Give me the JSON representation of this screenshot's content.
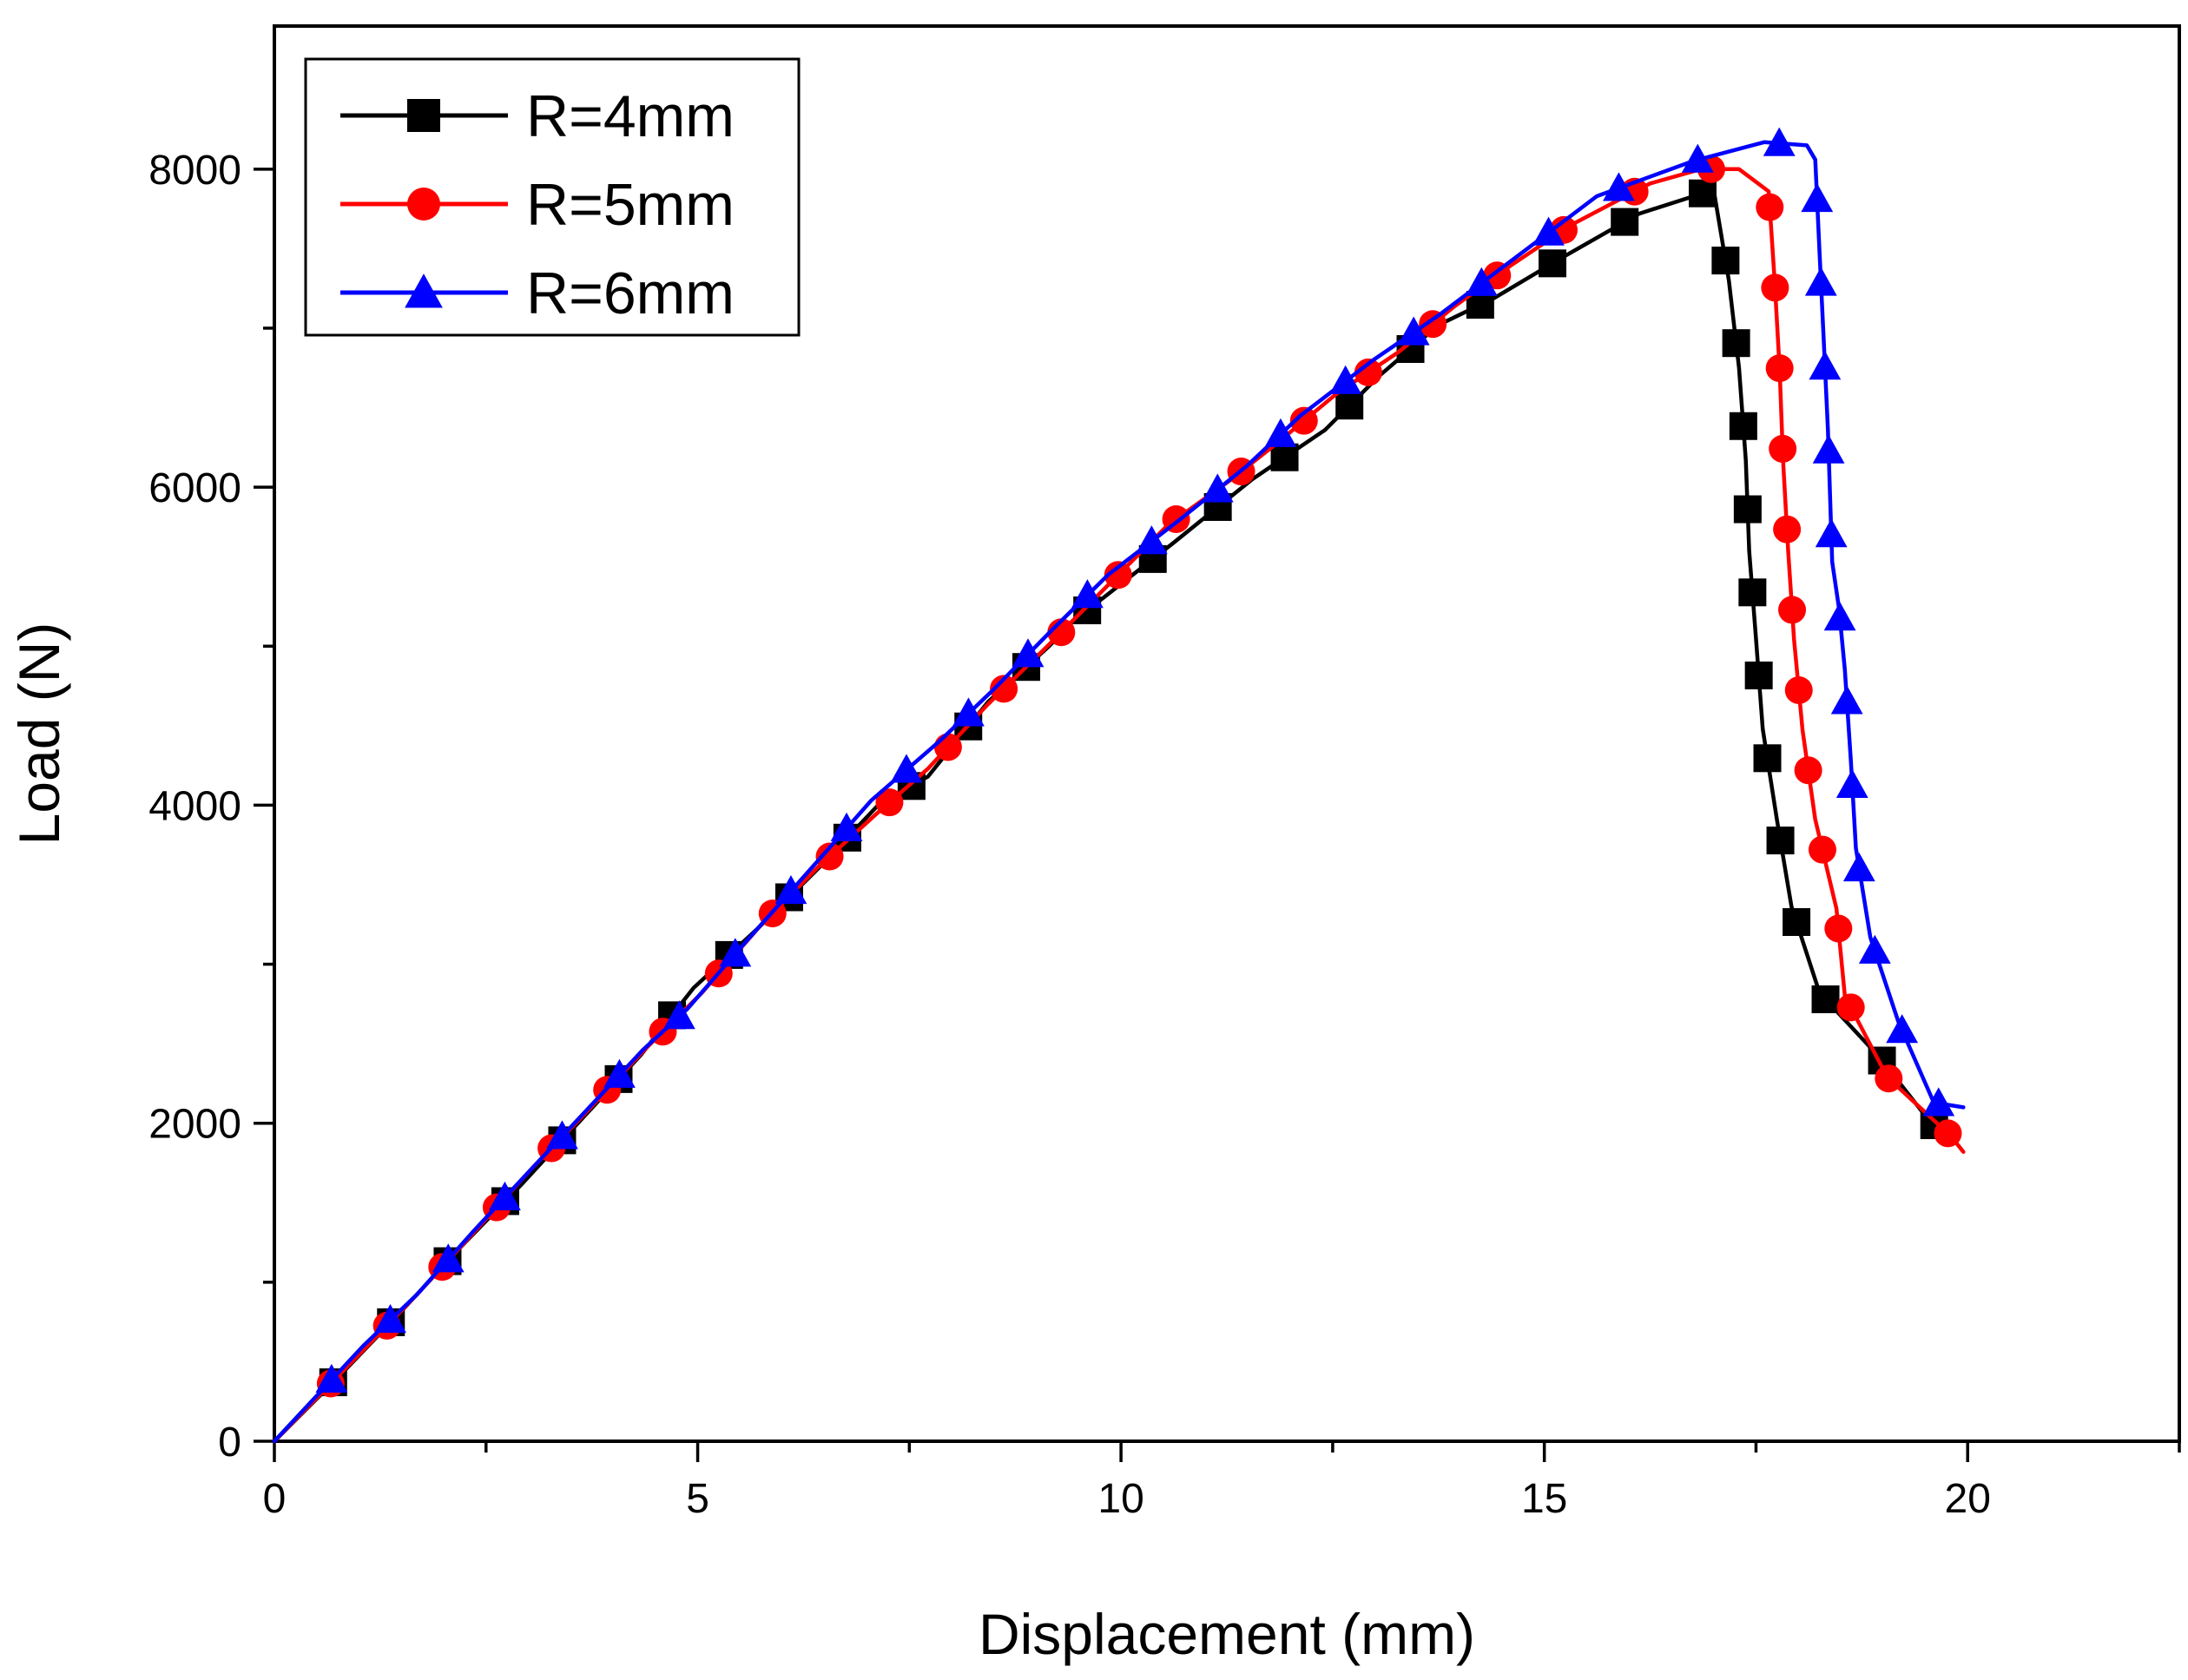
{
  "chart_data": {
    "type": "line",
    "title": "",
    "xlabel": "Displacement (mm)",
    "ylabel": "Load (N)",
    "xlim": [
      0,
      22.5
    ],
    "ylim": [
      0,
      8900
    ],
    "xticks": [
      0,
      5,
      10,
      15,
      20
    ],
    "yticks": [
      0,
      2000,
      4000,
      6000,
      8000
    ],
    "x_minor_step": 2.5,
    "y_minor_step": 1000,
    "grid": false,
    "legend_position": "top-left",
    "series": [
      {
        "name": "R=4mm",
        "color": "#000000",
        "marker": "square",
        "x": [
          0,
          0.75,
          1.47,
          2.18,
          2.91,
          3.62,
          4.33,
          4.95,
          5.72,
          6.42,
          7.13,
          7.72,
          8.43,
          9.15,
          9.42,
          10.62,
          11.55,
          12.41,
          13.05,
          13.75,
          14.41,
          15.23,
          16.12,
          17.0,
          17.18,
          17.3,
          17.38,
          17.42,
          17.5,
          17.58,
          17.75,
          17.92,
          18.25,
          18.95,
          19.57,
          19.85
        ],
        "y": [
          0,
          400,
          800,
          1210,
          1610,
          2020,
          2430,
          2850,
          3230,
          3600,
          4000,
          4180,
          4650,
          5000,
          5150,
          5650,
          6050,
          6360,
          6700,
          7020,
          7190,
          7450,
          7720,
          7870,
          7300,
          6750,
          6170,
          5600,
          5050,
          4480,
          3900,
          3360,
          2820,
          2420,
          2000,
          1900
        ],
        "marker_count": 35
      },
      {
        "name": "R=5mm",
        "color": "#ff0000",
        "marker": "circle",
        "x": [
          0,
          1.1,
          1.68,
          2.35,
          3.05,
          3.65,
          4.35,
          5.05,
          5.72,
          6.42,
          7.12,
          7.72,
          8.42,
          9.15,
          9.82,
          10.55,
          11.28,
          11.85,
          12.55,
          13.28,
          13.92,
          14.62,
          15.32,
          16.25,
          16.85,
          17.3,
          17.65,
          17.72,
          17.78,
          17.82,
          17.88,
          17.95,
          18.05,
          18.2,
          18.45,
          18.55,
          19.05,
          19.8,
          19.95
        ],
        "y": [
          0,
          600,
          920,
          1310,
          1720,
          2050,
          2450,
          2820,
          3230,
          3610,
          3950,
          4230,
          4630,
          5010,
          5370,
          5760,
          6040,
          6280,
          6590,
          6850,
          7130,
          7400,
          7650,
          7910,
          8000,
          8000,
          7860,
          7300,
          6740,
          6170,
          5600,
          5040,
          4470,
          3910,
          3350,
          2800,
          2290,
          1920,
          1820
        ],
        "marker_count": 37
      },
      {
        "name": "R=6mm",
        "color": "#0000ff",
        "marker": "triangle",
        "x": [
          0,
          1.05,
          1.68,
          2.35,
          3.05,
          3.65,
          4.35,
          4.88,
          5.55,
          6.42,
          7.05,
          7.85,
          8.5,
          9.18,
          9.85,
          10.68,
          11.48,
          12.12,
          12.98,
          13.75,
          14.9,
          15.62,
          16.75,
          17.6,
          18.1,
          18.2,
          18.25,
          18.3,
          18.35,
          18.4,
          18.48,
          18.55,
          18.62,
          18.68,
          18.85,
          19.18,
          19.6,
          19.95
        ],
        "y": [
          0,
          600,
          920,
          1320,
          1720,
          2060,
          2460,
          2720,
          3130,
          3650,
          4030,
          4400,
          4730,
          5100,
          5450,
          5790,
          6130,
          6450,
          6800,
          7080,
          7540,
          7830,
          8050,
          8170,
          8150,
          8060,
          7480,
          6920,
          6360,
          5530,
          5240,
          4850,
          4280,
          3730,
          3170,
          2640,
          2130,
          2100
        ],
        "marker_count": 36
      }
    ]
  }
}
